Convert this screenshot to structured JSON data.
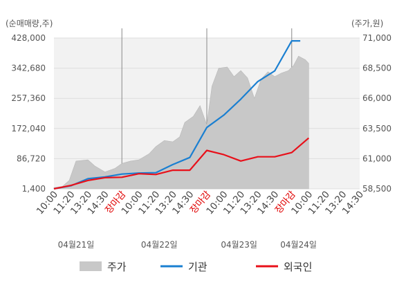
{
  "chart_data": {
    "type": "line",
    "left_axis_unit": "(순매매량,주)",
    "right_axis_unit": "(주가,원)",
    "left_ticks": [
      "428,000",
      "342,680",
      "257,360",
      "172,040",
      "86,720",
      "1,400"
    ],
    "right_ticks": [
      "71,000",
      "68,500",
      "66,000",
      "63,500",
      "61,000",
      "58,500"
    ],
    "left_range": [
      1400,
      428000
    ],
    "right_range": [
      58500,
      71000
    ],
    "x_ticks": [
      "10:00",
      "11:20",
      "13:20",
      "14:30",
      "장마감",
      "10:00",
      "11:20",
      "13:20",
      "14:30",
      "장마감",
      "10:00",
      "11:20",
      "13:20",
      "14:30",
      "장마감",
      "10:00",
      "11:20",
      "13:20",
      "14:30"
    ],
    "close_label": "장마감",
    "dates": [
      "04월21일",
      "04월22일",
      "04월23일",
      "04월24일"
    ],
    "legend": {
      "price": "주가",
      "institution": "기관",
      "foreign": "외국인"
    },
    "colors": {
      "price": "#c8c8c8",
      "institution": "#1a7fd1",
      "foreign": "#e8101a",
      "grid": "#dddddd",
      "plot_bg": "#f2f2f2"
    },
    "series": [
      {
        "name": "기관",
        "axis": "left",
        "values": [
          [
            0,
            1400
          ],
          [
            1,
            10000
          ],
          [
            2,
            30000
          ],
          [
            3,
            35000
          ],
          [
            4,
            43000
          ],
          [
            5,
            46000
          ],
          [
            6,
            47000
          ],
          [
            7,
            70000
          ],
          [
            8,
            90000
          ],
          [
            9,
            175000
          ],
          [
            10,
            210000
          ],
          [
            11,
            255000
          ],
          [
            12,
            305000
          ],
          [
            13,
            335000
          ],
          [
            14,
            420000
          ],
          [
            14.5,
            420000
          ]
        ]
      },
      {
        "name": "외국인",
        "axis": "left",
        "values": [
          [
            0,
            1400
          ],
          [
            1,
            11000
          ],
          [
            2,
            25000
          ],
          [
            3,
            33000
          ],
          [
            4,
            34000
          ],
          [
            5,
            44000
          ],
          [
            6,
            42000
          ],
          [
            7,
            54000
          ],
          [
            8,
            54000
          ],
          [
            9,
            110000
          ],
          [
            10,
            98000
          ],
          [
            11,
            80000
          ],
          [
            12,
            92000
          ],
          [
            13,
            92000
          ],
          [
            14,
            104000
          ],
          [
            15,
            145000
          ]
        ]
      },
      {
        "name": "주가",
        "axis": "right",
        "values": [
          [
            0,
            58600
          ],
          [
            0.5,
            58700
          ],
          [
            0.9,
            59200
          ],
          [
            1.3,
            60800
          ],
          [
            2,
            60900
          ],
          [
            2.4,
            60400
          ],
          [
            3,
            59900
          ],
          [
            3.6,
            60200
          ],
          [
            4,
            60600
          ],
          [
            4.5,
            60800
          ],
          [
            5,
            60900
          ],
          [
            5.6,
            61400
          ],
          [
            6,
            62000
          ],
          [
            6.5,
            62500
          ],
          [
            7,
            62400
          ],
          [
            7.4,
            62800
          ],
          [
            7.7,
            64000
          ],
          [
            8.2,
            64500
          ],
          [
            8.6,
            65400
          ],
          [
            9,
            63800
          ],
          [
            9.3,
            67000
          ],
          [
            9.7,
            68500
          ],
          [
            10.2,
            68600
          ],
          [
            10.6,
            67800
          ],
          [
            11,
            68300
          ],
          [
            11.4,
            67700
          ],
          [
            11.8,
            66000
          ],
          [
            12.2,
            67600
          ],
          [
            12.6,
            68200
          ],
          [
            13,
            67800
          ],
          [
            13.4,
            68100
          ],
          [
            13.8,
            68300
          ],
          [
            14.1,
            68700
          ],
          [
            14.4,
            69500
          ],
          [
            14.8,
            69200
          ],
          [
            15,
            68900
          ]
        ]
      }
    ]
  }
}
